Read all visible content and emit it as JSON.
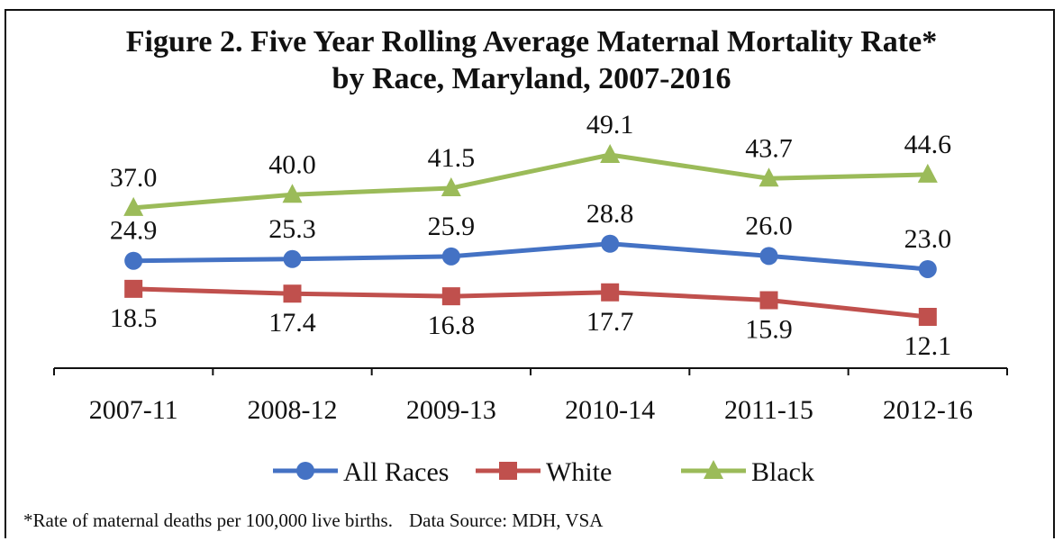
{
  "chart_data": {
    "type": "line",
    "title": "Figure 2. Five Year Rolling Average Maternal Mortality Rate*",
    "subtitle": "by Race, Maryland, 2007-2016",
    "categories": [
      "2007-11",
      "2008-12",
      "2009-13",
      "2010-14",
      "2011-15",
      "2012-16"
    ],
    "series": [
      {
        "name": "All Races",
        "color": "#4472C4",
        "marker": "circle",
        "values": [
          24.9,
          25.3,
          25.9,
          28.8,
          26.0,
          23.0
        ],
        "labels": [
          "24.9",
          "25.3",
          "25.9",
          "28.8",
          "26.0",
          "23.0"
        ]
      },
      {
        "name": "White",
        "color": "#C0504D",
        "marker": "square",
        "values": [
          18.5,
          17.4,
          16.8,
          17.7,
          15.9,
          12.1
        ],
        "labels": [
          "18.5",
          "17.4",
          "16.8",
          "17.7",
          "15.9",
          "12.1"
        ]
      },
      {
        "name": "Black",
        "color": "#9BBB59",
        "marker": "triangle",
        "values": [
          37.0,
          40.0,
          41.5,
          49.1,
          43.7,
          44.6
        ],
        "labels": [
          "37.0",
          "40.0",
          "41.5",
          "49.1",
          "43.7",
          "44.6"
        ]
      }
    ],
    "legend_position": "bottom",
    "grid": false
  },
  "footnote": {
    "note": "*Rate of maternal deaths per 100,000 live births.",
    "source": "Data Source: MDH, VSA"
  }
}
